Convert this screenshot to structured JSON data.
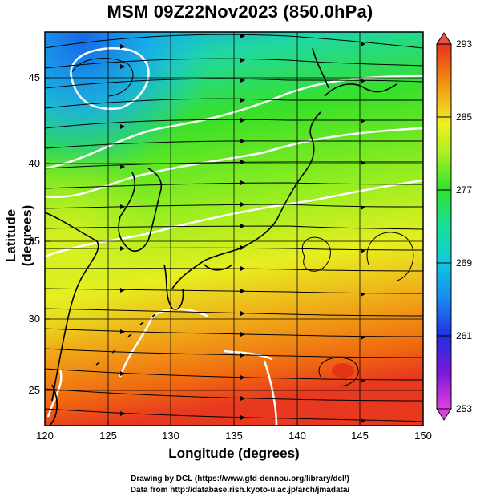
{
  "title": "MSM 09Z22Nov2023 (850.0hPa)",
  "xlabel": "Longitude (degrees)",
  "ylabel": "Latitude  (degrees)",
  "x_ticks": [
    "120",
    "125",
    "130",
    "135",
    "140",
    "145",
    "150"
  ],
  "y_ticks": [
    "45",
    "40",
    "35",
    "30",
    "25"
  ],
  "colorbar": {
    "ticks": [
      "293",
      "285",
      "277",
      "269",
      "261",
      "253"
    ],
    "min": 253,
    "max": 293,
    "colors": [
      "#e040e0",
      "#7a18d8",
      "#2030e0",
      "#1888f0",
      "#10c8e0",
      "#18e098",
      "#30e030",
      "#a8f020",
      "#f0f020",
      "#f0b018",
      "#f07010",
      "#e83020"
    ]
  },
  "credits": [
    "Drawing by DCL (https://www.gfd-dennou.org/library/dcl/)",
    "Data from http://database.rish.kyoto-u.ac.jp/arch/jmadata/"
  ],
  "chart_data": {
    "type": "map",
    "title": "MSM 09Z22Nov2023 (850.0hPa)",
    "xlabel": "Longitude (degrees)",
    "ylabel": "Latitude  (degrees)",
    "xlim": [
      120,
      150
    ],
    "ylim": [
      22.4,
      47.6
    ],
    "x_ticks": [
      120,
      125,
      130,
      135,
      140,
      145,
      150
    ],
    "y_ticks": [
      25,
      30,
      35,
      40,
      45
    ],
    "colorbar_range": [
      253,
      293
    ],
    "grid": true,
    "variable": "temperature (K) with wind streamlines"
  }
}
